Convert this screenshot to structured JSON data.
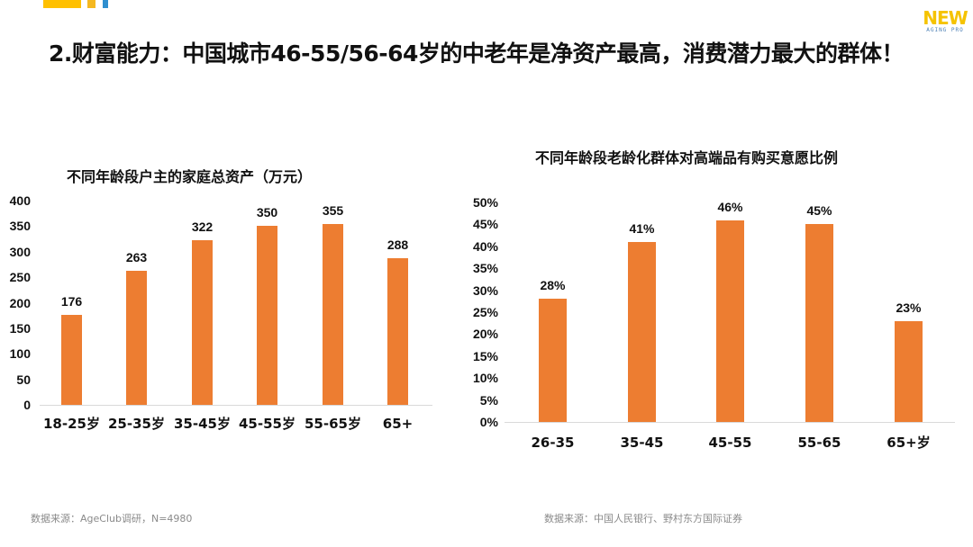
{
  "header": {
    "decor_colors": [
      "#ffc000",
      "#f5b820",
      "#2f8fcf"
    ],
    "logo": {
      "line1": "NEW",
      "line2": "AGING PRO",
      "color": "#f5c300"
    },
    "title": "2.财富能力：中国城市46-55/56-64岁的中老年是净资产最高，消费潜力最大的群体！"
  },
  "colors": {
    "bar": "#ed7d31",
    "axis": "#d9d9d9",
    "text": "#111111",
    "source": "#8a8a8a"
  },
  "chart_data": [
    {
      "type": "bar",
      "title": "不同年龄段户主的家庭总资产（万元）",
      "xlabel": "",
      "ylabel": "",
      "categories": [
        "18-25岁",
        "25-35岁",
        "35-45岁",
        "45-55岁",
        "55-65岁",
        "65+"
      ],
      "values": [
        176,
        263,
        322,
        350,
        355,
        288
      ],
      "value_labels": [
        "176",
        "263",
        "322",
        "350",
        "355",
        "288"
      ],
      "yticks": [
        "0",
        "50",
        "100",
        "150",
        "200",
        "250",
        "300",
        "350",
        "400"
      ],
      "ylim": [
        0,
        400
      ],
      "grid": false,
      "legend": null,
      "source": "数据来源：AgeClub调研，N=4980"
    },
    {
      "type": "bar",
      "title": "不同年龄段老龄化群体对高端品有购买意愿比例",
      "xlabel": "",
      "ylabel": "",
      "categories": [
        "26-35",
        "35-45",
        "45-55",
        "55-65",
        "65+岁"
      ],
      "values": [
        28,
        41,
        46,
        45,
        23
      ],
      "value_labels": [
        "28%",
        "41%",
        "46%",
        "45%",
        "23%"
      ],
      "yticks": [
        "0%",
        "5%",
        "10%",
        "15%",
        "20%",
        "25%",
        "30%",
        "35%",
        "40%",
        "45%",
        "50%"
      ],
      "ylim": [
        0,
        50
      ],
      "unit": "%",
      "grid": false,
      "legend": null,
      "source": "数据来源：中国人民银行、野村东方国际证券"
    }
  ]
}
